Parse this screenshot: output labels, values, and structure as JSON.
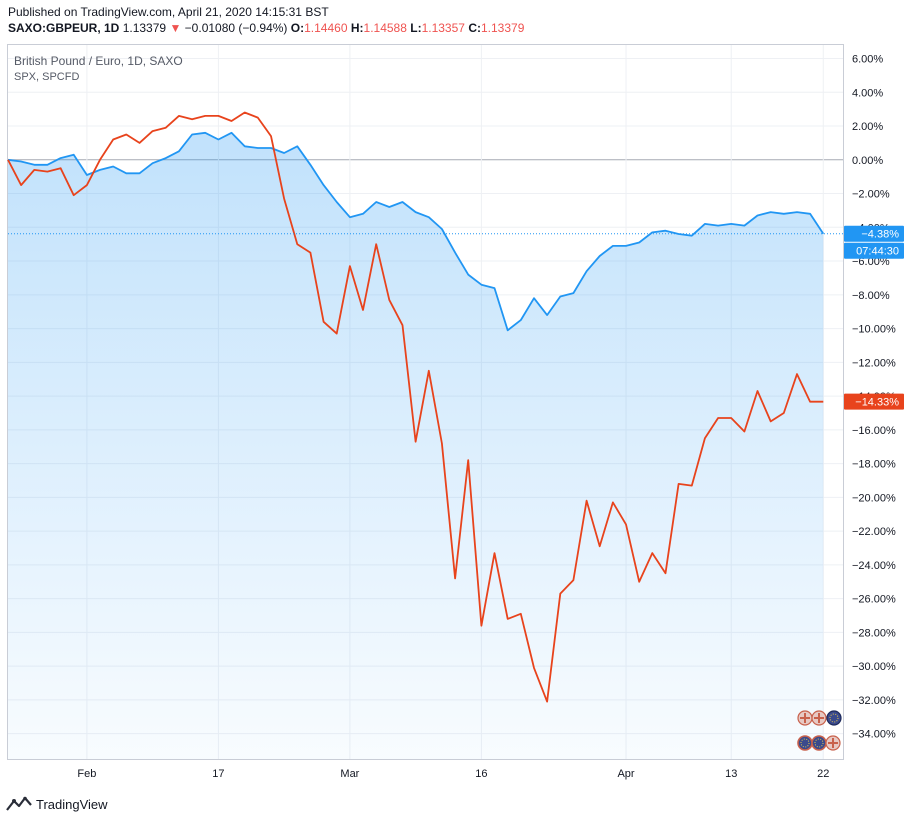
{
  "header": {
    "published": "Published on TradingView.com, April 21, 2020 14:15:31 BST",
    "symbol": "SAXO:GBPEUR, 1D",
    "price": "1.13379",
    "change": "−0.01080 (−0.94%)",
    "open_label": "O:",
    "open": "1.14460",
    "high_label": "H:",
    "high": "1.14588",
    "low_label": "L:",
    "low": "1.13357",
    "close_label": "C:",
    "close": "1.13379"
  },
  "legend": {
    "title": "British Pound / Euro, 1D, SAXO",
    "subtitle": "SPX, SPCFD"
  },
  "footer": {
    "brand": "TradingView",
    "logo_icon": "tradingview-logo-icon"
  },
  "colors": {
    "gbpeur": "#2196f3",
    "spx": "#e8431c",
    "axis_text": "#131722",
    "grid": "#eef0f4"
  },
  "chart_data": {
    "type": "line",
    "title": "British Pound / Euro, 1D, SAXO",
    "ylim": [
      -35.5,
      6.8
    ],
    "y_ticks": [
      6,
      4,
      2,
      0,
      -2,
      -4,
      -6,
      -8,
      -10,
      -12,
      -14,
      -16,
      -18,
      -20,
      -22,
      -24,
      -26,
      -28,
      -30,
      -32,
      -34
    ],
    "y_tick_labels": [
      "6.00%",
      "4.00%",
      "2.00%",
      "0.00%",
      "−2.00%",
      "−4.00%",
      "−6.00%",
      "−8.00%",
      "−10.00%",
      "−12.00%",
      "−14.00%",
      "−16.00%",
      "−18.00%",
      "−20.00%",
      "−22.00%",
      "−24.00%",
      "−26.00%",
      "−28.00%",
      "−30.00%",
      "−32.00%",
      "−34.00%"
    ],
    "x_range": [
      0,
      63.5
    ],
    "x_ticks": [
      {
        "x": 6,
        "label": "Feb"
      },
      {
        "x": 16,
        "label": "17"
      },
      {
        "x": 26,
        "label": "Mar"
      },
      {
        "x": 36,
        "label": "16"
      },
      {
        "x": 47,
        "label": "Apr"
      },
      {
        "x": 55,
        "label": "13"
      },
      {
        "x": 62,
        "label": "22"
      }
    ],
    "series": [
      {
        "name": "GBPEUR",
        "color": "#2196f3",
        "last_label": "−4.38%",
        "countdown": "07:44:30",
        "values": [
          0,
          -0.1,
          -0.3,
          -0.3,
          0.1,
          0.3,
          -0.9,
          -0.6,
          -0.4,
          -0.8,
          -0.8,
          -0.2,
          0.1,
          0.5,
          1.5,
          1.6,
          1.2,
          1.6,
          0.8,
          0.7,
          0.7,
          0.4,
          0.8,
          -0.3,
          -1.5,
          -2.5,
          -3.4,
          -3.2,
          -2.5,
          -2.8,
          -2.5,
          -3.1,
          -3.4,
          -4.1,
          -5.5,
          -6.8,
          -7.4,
          -7.6,
          -10.1,
          -9.5,
          -8.2,
          -9.2,
          -8.1,
          -7.9,
          -6.6,
          -5.7,
          -5.1,
          -5.1,
          -4.9,
          -4.3,
          -4.2,
          -4.4,
          -4.5,
          -3.8,
          -3.9,
          -3.8,
          -3.9,
          -3.3,
          -3.1,
          -3.2,
          -3.1,
          -3.2,
          -4.38
        ]
      },
      {
        "name": "SPX",
        "color": "#e8431c",
        "last_label": "−14.33%",
        "values": [
          0,
          -1.5,
          -0.6,
          -0.7,
          -0.5,
          -2.1,
          -1.5,
          0,
          1.2,
          1.5,
          1.0,
          1.7,
          1.9,
          2.6,
          2.4,
          2.6,
          2.6,
          2.3,
          2.8,
          2.5,
          1.4,
          -2.3,
          -5.0,
          -5.5,
          -9.6,
          -10.3,
          -6.3,
          -8.9,
          -5.0,
          -8.3,
          -9.8,
          -16.7,
          -12.5,
          -16.8,
          -24.8,
          -17.8,
          -27.6,
          -23.3,
          -27.2,
          -26.9,
          -30.1,
          -32.1,
          -25.7,
          -24.9,
          -20.2,
          -22.9,
          -20.3,
          -21.6,
          -25.0,
          -23.3,
          -24.5,
          -19.2,
          -19.3,
          -16.5,
          -15.3,
          -15.3,
          -16.1,
          -13.7,
          -15.5,
          -15.0,
          -12.7,
          -14.33,
          -14.33
        ]
      }
    ]
  }
}
